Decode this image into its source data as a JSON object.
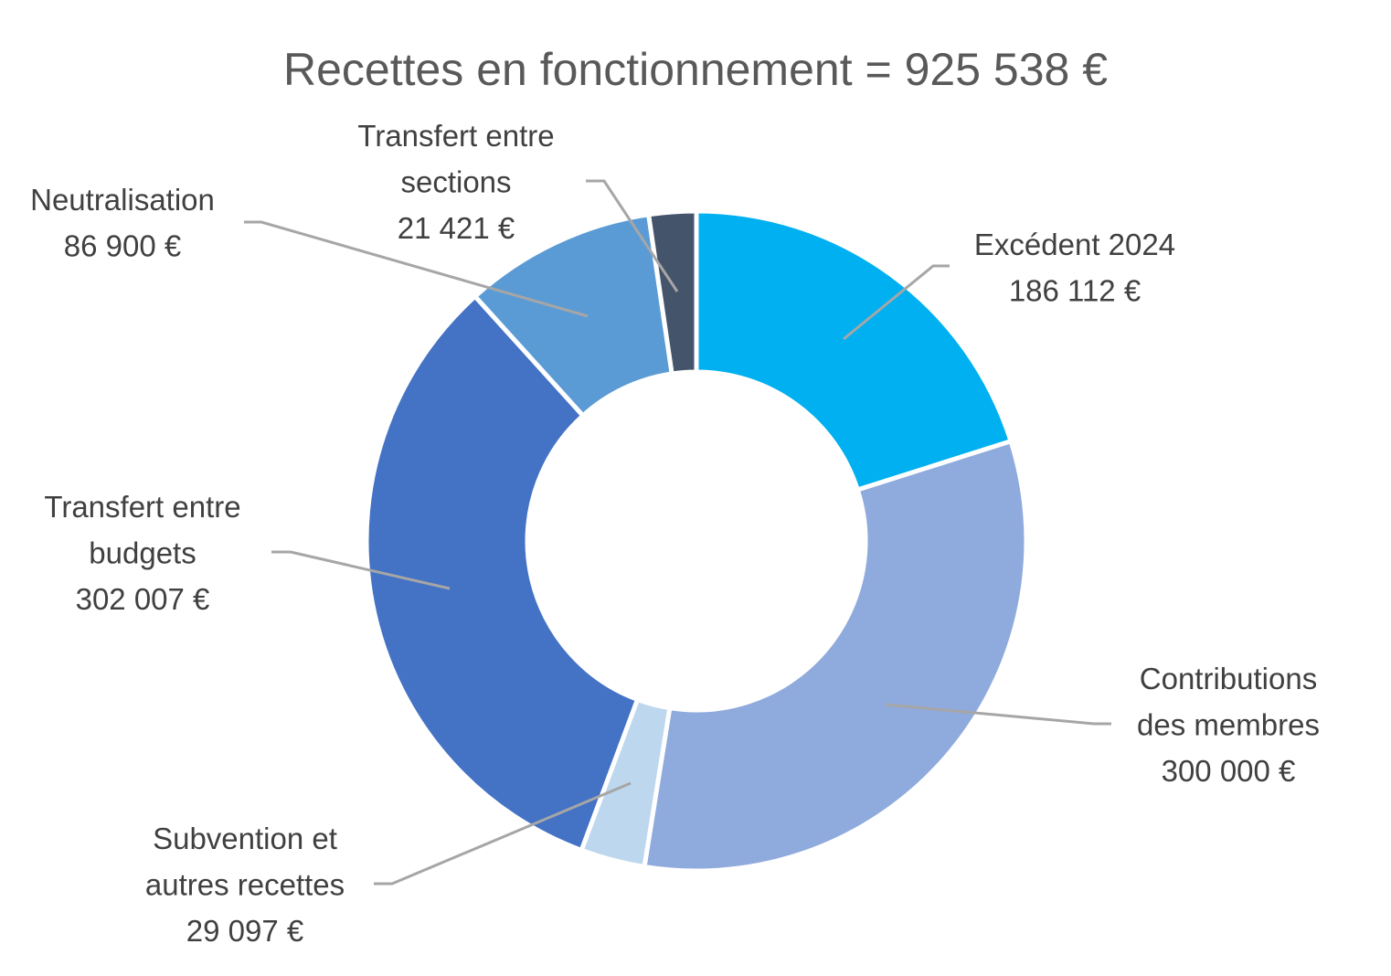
{
  "chart_data": {
    "type": "pie",
    "subtype": "donut",
    "title": "Recettes en fonctionnement = 925 538 €",
    "total": 925538,
    "start": "top",
    "direction": "clockwise",
    "legend": "none",
    "slices": [
      {
        "name": "Excédent 2024",
        "label_lines": [
          "Excédent 2024",
          "186 112 €"
        ],
        "value": 186112,
        "color": "#00B0F0"
      },
      {
        "name": "Contributions des membres",
        "label_lines": [
          "Contributions",
          "des membres",
          "300 000 €"
        ],
        "value": 300000,
        "color": "#8FAADC"
      },
      {
        "name": "Subvention et autres recettes",
        "label_lines": [
          "Subvention et",
          "autres recettes",
          "29 097 €"
        ],
        "value": 29097,
        "color": "#BDD7EE"
      },
      {
        "name": "Transfert entre budgets",
        "label_lines": [
          "Transfert entre",
          "budgets",
          "302 007 €"
        ],
        "value": 302007,
        "color": "#4472C4"
      },
      {
        "name": "Neutralisation",
        "label_lines": [
          "Neutralisation",
          "86 900 €"
        ],
        "value": 86900,
        "color": "#5B9BD5"
      },
      {
        "name": "Transfert entre sections",
        "label_lines": [
          "Transfert entre",
          "sections",
          "21 421 €"
        ],
        "value": 21421,
        "color": "#44546A"
      }
    ]
  }
}
